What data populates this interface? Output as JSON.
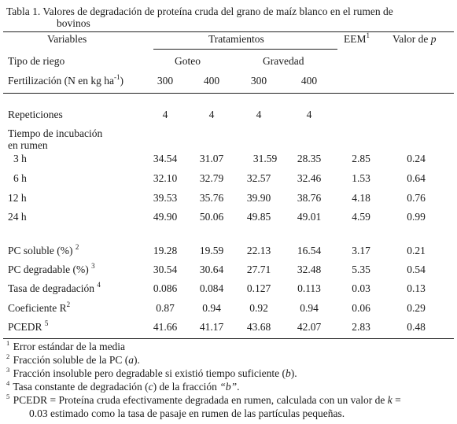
{
  "title": {
    "line1": "Tabla 1. Valores de degradación de proteína cruda del grano de maíz blanco en el rumen de",
    "line2": "bovinos"
  },
  "header": {
    "variables": "Variables",
    "tratamientos": "Tratamientos",
    "eem": "EEM",
    "eem_sup": "1",
    "valor_p": "Valor de ",
    "valor_p_italic": "p",
    "tipo_riego": "Tipo de riego",
    "goteo": "Goteo",
    "gravedad": "Gravedad",
    "fertilizacion": "Fertilización (N en kg ha",
    "fertilizacion_sup": "-1",
    "fertilizacion_end": ")",
    "doses": [
      "300",
      "400",
      "300",
      "400"
    ]
  },
  "rows": {
    "repeticiones": {
      "label": "Repeticiones",
      "values": [
        "4",
        "4",
        "4",
        "4"
      ]
    },
    "tiempo_label1": "Tiempo de incubación",
    "tiempo_label2": "en rumen",
    "h3": {
      "label": "3 h",
      "values": [
        "34.54",
        "31.07",
        "31.59",
        "28.35",
        "2.85",
        "0.24"
      ]
    },
    "h6": {
      "label": "6 h",
      "values": [
        "32.10",
        "32.79",
        "32.57",
        "32.46",
        "1.53",
        "0.64"
      ]
    },
    "h12": {
      "label": "12 h",
      "values": [
        "39.53",
        "35.76",
        "39.90",
        "38.76",
        "4.18",
        "0.76"
      ]
    },
    "h24": {
      "label": "24 h",
      "values": [
        "49.90",
        "50.06",
        "49.85",
        "49.01",
        "4.59",
        "0.99"
      ]
    },
    "pc_soluble": {
      "label": "PC soluble (%) ",
      "sup": "2",
      "values": [
        "19.28",
        "19.59",
        "22.13",
        "16.54",
        "3.17",
        "0.21"
      ]
    },
    "pc_degradable": {
      "label": "PC degradable (%) ",
      "sup": "3",
      "values": [
        "30.54",
        "30.64",
        "27.71",
        "32.48",
        "5.35",
        "0.54"
      ]
    },
    "tasa": {
      "label": "Tasa de degradación ",
      "sup": "4",
      "values": [
        "0.086",
        "0.084",
        "0.127",
        "0.113",
        "0.03",
        "0.13"
      ]
    },
    "coef": {
      "label": "Coeficiente R",
      "sup": "2",
      "values": [
        "0.87",
        "0.94",
        "0.92",
        "0.94",
        "0.06",
        "0.29"
      ]
    },
    "pcedr": {
      "label": "PCEDR ",
      "sup": "5",
      "values": [
        "41.66",
        "41.17",
        "43.68",
        "42.07",
        "2.83",
        "0.48"
      ]
    }
  },
  "footnotes": {
    "f1_num": "1",
    "f1": " Error estándar de la media",
    "f2_num": "2",
    "f2a": " Fracción soluble de la PC (",
    "f2_it": "a",
    "f2b": ").",
    "f3_num": "3",
    "f3a": " Fracción insoluble pero degradable si existió tiempo suficiente (",
    "f3_it": "b",
    "f3b": ").",
    "f4_num": "4",
    "f4a": " Tasa constante de degradación (",
    "f4_it": "c",
    "f4b": ") de la fracción ",
    "f4_it2": "“b”",
    "f4c": ".",
    "f5_num": "5",
    "f5a": " PCEDR = Proteína cruda efectivamente degradada en rumen, calculada con un valor de ",
    "f5_it": "k",
    "f5b": " =",
    "f5_line2": "0.03 estimado como la tasa de pasaje en rumen de las partículas pequeñas."
  }
}
